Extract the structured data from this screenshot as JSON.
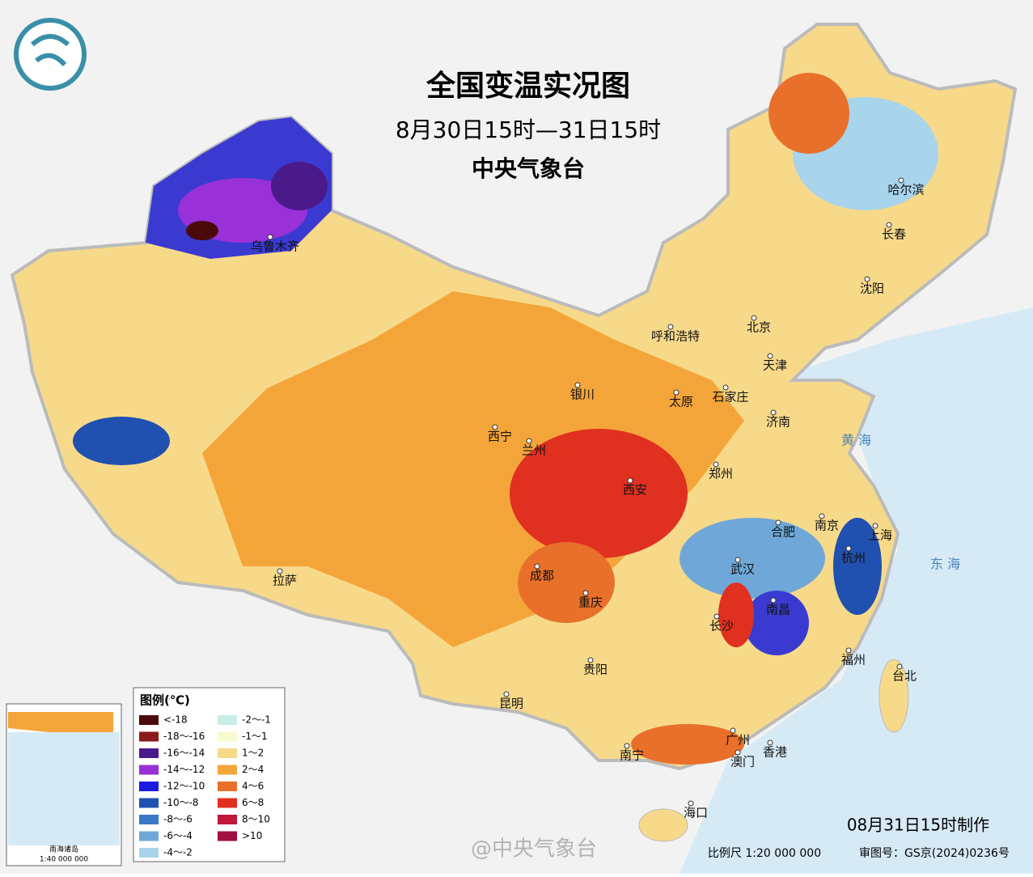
{
  "header": {
    "title": "全国变温实况图",
    "subtitle": "8月30日15时—31日15时",
    "org": "中央气象台"
  },
  "legend": {
    "title": "图例(℃)",
    "items": [
      {
        "label": "<-18",
        "color": "#4a0a0a"
      },
      {
        "label": "-18～-16",
        "color": "#8b1a1a"
      },
      {
        "label": "-16～-14",
        "color": "#4b1a8a"
      },
      {
        "label": "-14～-12",
        "color": "#9a30d8"
      },
      {
        "label": "-12～-10",
        "color": "#1a1ae0"
      },
      {
        "label": "-10～-8",
        "color": "#2050b0"
      },
      {
        "label": "-8～-6",
        "color": "#3a78c8"
      },
      {
        "label": "-6～-4",
        "color": "#6fa8d8"
      },
      {
        "label": "-4～-2",
        "color": "#a8d4ec"
      },
      {
        "label": "-2～-1",
        "color": "#c8eee8"
      },
      {
        "label": "-1～1",
        "color": "#fafad2"
      },
      {
        "label": "1～2",
        "color": "#f7d98a"
      },
      {
        "label": "2～4",
        "color": "#f4a53a"
      },
      {
        "label": "4～6",
        "color": "#e8702a"
      },
      {
        "label": "6～8",
        "color": "#e03020"
      },
      {
        "label": "8～10",
        "color": "#c01838"
      },
      {
        "label": ">10",
        "color": "#a01040"
      }
    ]
  },
  "cities": [
    "乌鲁木齐",
    "哈尔滨",
    "长春",
    "沈阳",
    "呼和浩特",
    "北京",
    "天津",
    "银川",
    "太原",
    "石家庄",
    "西宁",
    "兰州",
    "济南",
    "郑州",
    "西安",
    "合肥",
    "南京",
    "上海",
    "拉萨",
    "成都",
    "武汉",
    "杭州",
    "重庆",
    "长沙",
    "南昌",
    "贵阳",
    "福州",
    "台北",
    "昆明",
    "南宁",
    "广州",
    "香港",
    "澳门",
    "海口"
  ],
  "seas": [
    "黄 海",
    "东 海"
  ],
  "inset": {
    "title": "南海诸岛",
    "scale": "1:40 000 000"
  },
  "footer": {
    "made": "08月31日15时制作",
    "scale": "比例尺 1:20 000 000",
    "approval": "审图号：GS京(2024)0236号",
    "watermark": "@中央气象台"
  }
}
